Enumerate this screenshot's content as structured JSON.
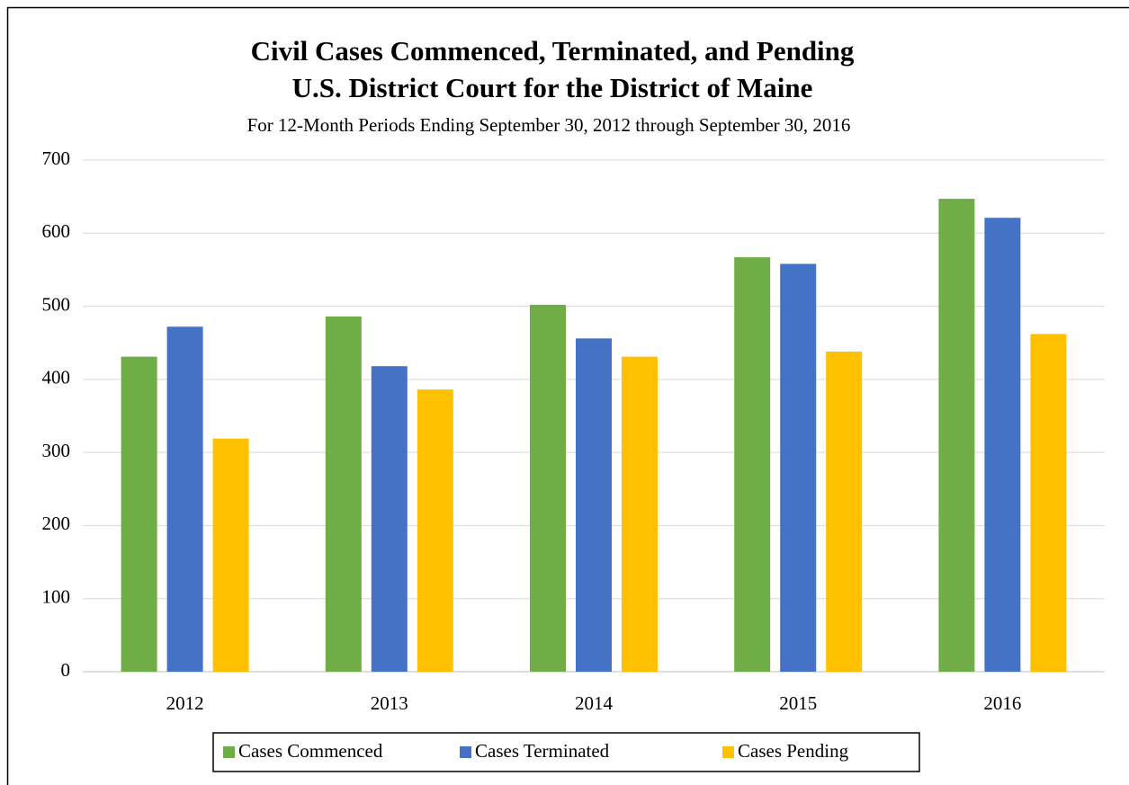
{
  "chart_data": {
    "type": "bar",
    "title": "Civil Cases Commenced, Terminated, and Pending",
    "subtitle": "U.S. District Court for the District of Maine",
    "note": "For 12-Month Periods Ending September 30, 2012 through September 30, 2016",
    "categories": [
      "2012",
      "2013",
      "2014",
      "2015",
      "2016"
    ],
    "series": [
      {
        "name": "Cases Commenced",
        "color": "#70ad47",
        "values": [
          431,
          486,
          502,
          567,
          647
        ]
      },
      {
        "name": "Cases Terminated",
        "color": "#4472c4",
        "values": [
          472,
          418,
          456,
          558,
          621
        ]
      },
      {
        "name": "Cases Pending",
        "color": "#ffc000",
        "values": [
          319,
          386,
          431,
          438,
          462
        ]
      }
    ],
    "ylim": [
      0,
      700
    ],
    "yticks": [
      0,
      100,
      200,
      300,
      400,
      500,
      600,
      700
    ],
    "grid": true,
    "legend": "bottom"
  }
}
